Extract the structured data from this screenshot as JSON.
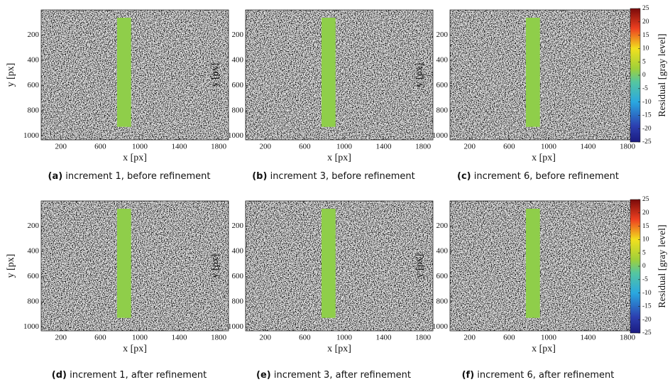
{
  "chart_data": [
    {
      "type": "image",
      "caption_label": "(a)",
      "caption": "increment 1, before refinement",
      "xlabel": "x [px]",
      "ylabel": "y [px]",
      "xlim": [
        0,
        1900
      ],
      "ylim": [
        0,
        1030
      ],
      "y_reversed": true,
      "xticks": [
        200,
        600,
        1000,
        1400,
        1800
      ],
      "yticks": [
        200,
        400,
        600,
        800,
        1000
      ]
    },
    {
      "type": "image",
      "caption_label": "(b)",
      "caption": "increment 3, before refinement",
      "xlabel": "x [px]",
      "ylabel": "y [px]",
      "xlim": [
        0,
        1900
      ],
      "ylim": [
        0,
        1030
      ],
      "y_reversed": true,
      "xticks": [
        200,
        600,
        1000,
        1400,
        1800
      ],
      "yticks": [
        200,
        400,
        600,
        800,
        1000
      ]
    },
    {
      "type": "image",
      "caption_label": "(c)",
      "caption": "increment 6, before refinement",
      "xlabel": "x [px]",
      "ylabel": "y [px]",
      "xlim": [
        0,
        1900
      ],
      "ylim": [
        0,
        1030
      ],
      "y_reversed": true,
      "xticks": [
        200,
        600,
        1000,
        1400,
        1800
      ],
      "yticks": [
        200,
        400,
        600,
        800,
        1000
      ],
      "colorbar": {
        "label": "Residual [gray level]",
        "lim": [
          -25,
          25
        ],
        "ticks": [
          -25,
          -20,
          -15,
          -10,
          -5,
          0,
          5,
          10,
          15,
          20,
          25
        ]
      }
    },
    {
      "type": "image",
      "caption_label": "(d)",
      "caption": "increment 1, after refinement",
      "xlabel": "x [px]",
      "ylabel": "y [px]",
      "xlim": [
        0,
        1900
      ],
      "ylim": [
        0,
        1030
      ],
      "y_reversed": true,
      "xticks": [
        200,
        600,
        1000,
        1400,
        1800
      ],
      "yticks": [
        200,
        400,
        600,
        800,
        1000
      ]
    },
    {
      "type": "image",
      "caption_label": "(e)",
      "caption": "increment 3, after refinement",
      "xlabel": "x [px]",
      "ylabel": "y [px]",
      "xlim": [
        0,
        1900
      ],
      "ylim": [
        0,
        1030
      ],
      "y_reversed": true,
      "xticks": [
        200,
        600,
        1000,
        1400,
        1800
      ],
      "yticks": [
        200,
        400,
        600,
        800,
        1000
      ]
    },
    {
      "type": "image",
      "caption_label": "(f)",
      "caption": "increment 6, after refinement",
      "xlabel": "x [px]",
      "ylabel": "y [px]",
      "xlim": [
        0,
        1900
      ],
      "ylim": [
        0,
        1030
      ],
      "y_reversed": true,
      "xticks": [
        200,
        600,
        1000,
        1400,
        1800
      ],
      "yticks": [
        200,
        400,
        600,
        800,
        1000
      ],
      "colorbar": {
        "label": "Residual [gray level]",
        "lim": [
          -25,
          25
        ],
        "ticks": [
          -25,
          -20,
          -15,
          -10,
          -5,
          0,
          5,
          10,
          15,
          20,
          25
        ]
      }
    }
  ]
}
